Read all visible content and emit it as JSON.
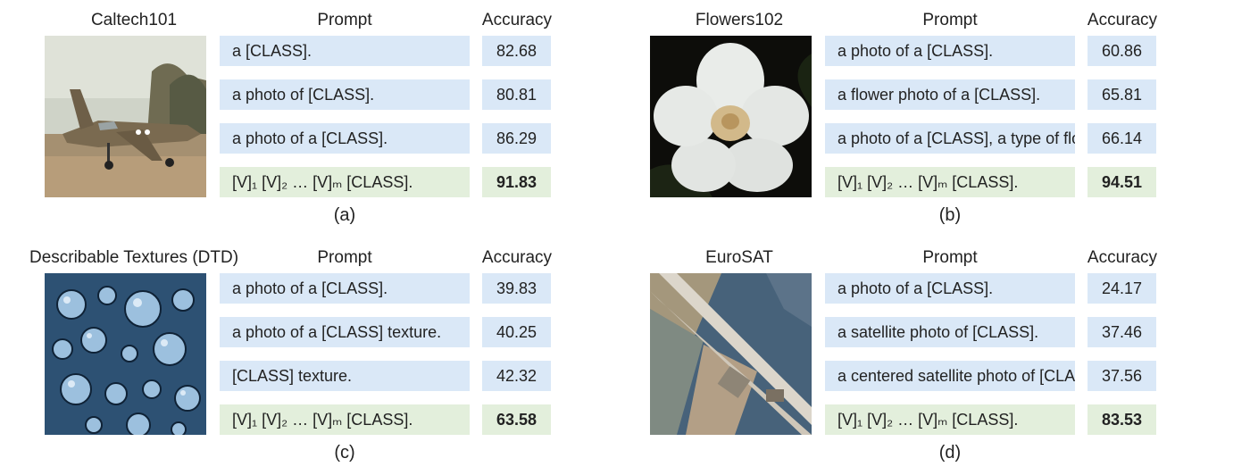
{
  "column_headers": {
    "prompt": "Prompt",
    "accuracy": "Accuracy"
  },
  "panels": [
    {
      "dataset": "Caltech101",
      "caption": "(a)",
      "rows": [
        {
          "prompt": "a [CLASS].",
          "accuracy": "82.68"
        },
        {
          "prompt": "a photo of [CLASS].",
          "accuracy": "80.81"
        },
        {
          "prompt": "a photo of a [CLASS].",
          "accuracy": "86.29"
        },
        {
          "prompt": "[V]₁ [V]₂ … [V]ₘ [CLASS].",
          "accuracy": "91.83"
        }
      ]
    },
    {
      "dataset": "Flowers102",
      "caption": "(b)",
      "rows": [
        {
          "prompt": "a photo of a [CLASS].",
          "accuracy": "60.86"
        },
        {
          "prompt": "a flower photo of a [CLASS].",
          "accuracy": "65.81"
        },
        {
          "prompt": "a photo of a [CLASS], a type of flower.",
          "accuracy": "66.14"
        },
        {
          "prompt": "[V]₁ [V]₂ … [V]ₘ [CLASS].",
          "accuracy": "94.51"
        }
      ]
    },
    {
      "dataset": "Describable Textures (DTD)",
      "caption": "(c)",
      "rows": [
        {
          "prompt": "a photo of a [CLASS].",
          "accuracy": "39.83"
        },
        {
          "prompt": "a photo of a [CLASS] texture.",
          "accuracy": "40.25"
        },
        {
          "prompt": "[CLASS] texture.",
          "accuracy": "42.32"
        },
        {
          "prompt": "[V]₁ [V]₂ … [V]ₘ [CLASS].",
          "accuracy": "63.58"
        }
      ]
    },
    {
      "dataset": "EuroSAT",
      "caption": "(d)",
      "rows": [
        {
          "prompt": "a photo of a [CLASS].",
          "accuracy": "24.17"
        },
        {
          "prompt": "a satellite photo of [CLASS].",
          "accuracy": "37.46"
        },
        {
          "prompt": "a centered satellite photo of [CLASS].",
          "accuracy": "37.56"
        },
        {
          "prompt": "[V]₁ [V]₂ … [V]ₘ [CLASS].",
          "accuracy": "83.53"
        }
      ]
    }
  ]
}
